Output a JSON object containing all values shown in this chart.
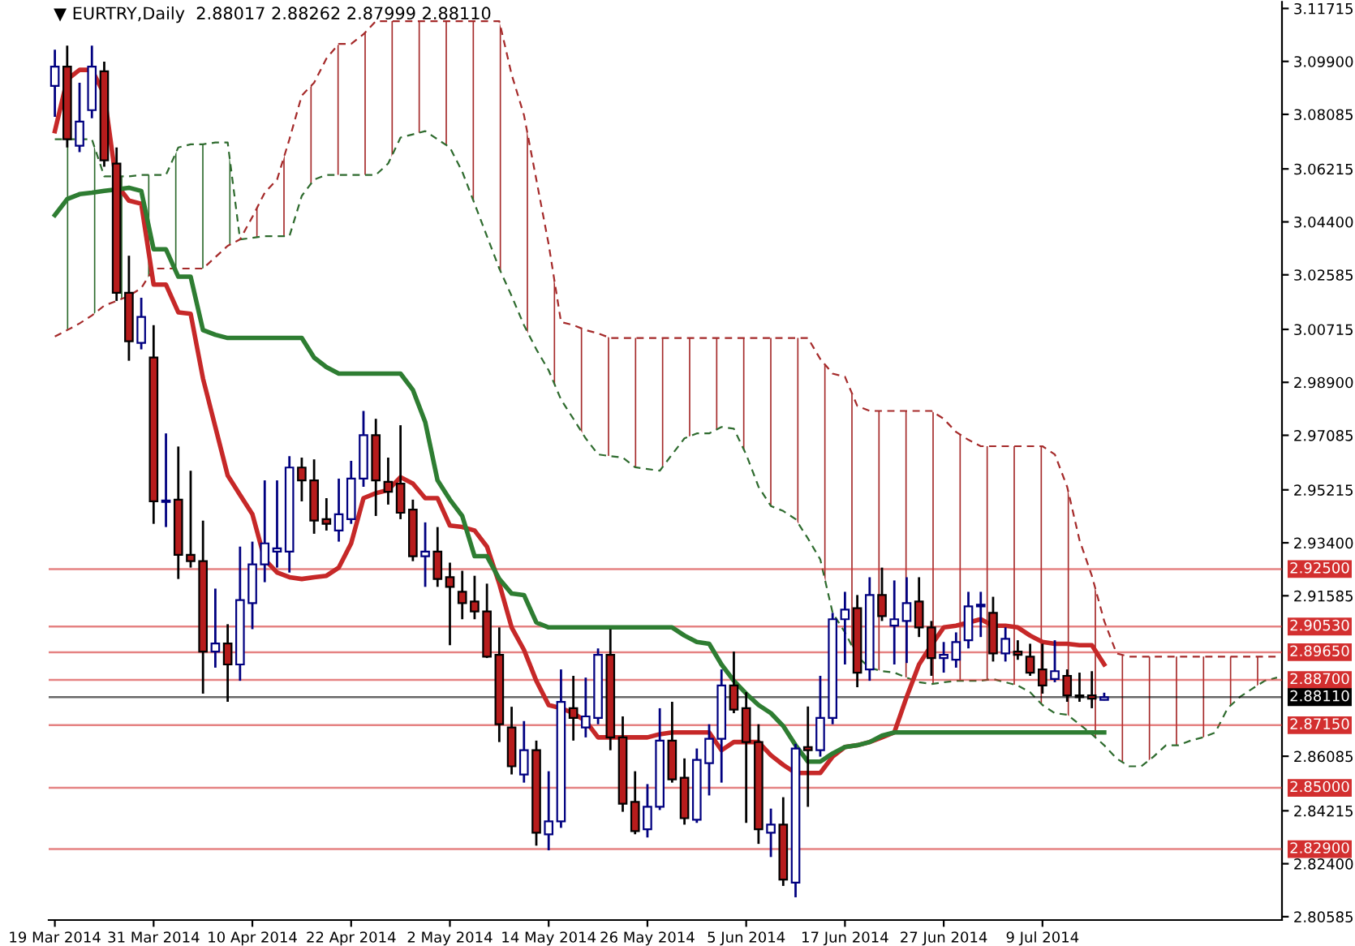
{
  "chart_data": {
    "type": "candlestick",
    "title": "▼ EURTRY,Daily  2.88017 2.88262 2.87999 2.88110",
    "categories": [
      "19 Mar 2014",
      null,
      null,
      null,
      null,
      null,
      null,
      null,
      "31 Mar 2014",
      null,
      null,
      null,
      null,
      null,
      null,
      null,
      "10 Apr 2014",
      null,
      null,
      null,
      null,
      null,
      null,
      null,
      "22 Apr 2014",
      null,
      null,
      null,
      null,
      null,
      null,
      null,
      "2 May 2014",
      null,
      null,
      null,
      null,
      null,
      null,
      null,
      "14 May 2014",
      null,
      null,
      null,
      null,
      null,
      null,
      null,
      "26 May 2014",
      null,
      null,
      null,
      null,
      null,
      null,
      null,
      "5 Jun 2014",
      null,
      null,
      null,
      null,
      null,
      null,
      null,
      "17 Jun 2014",
      null,
      null,
      null,
      null,
      null,
      null,
      null,
      "27 Jun 2014",
      null,
      null,
      null,
      null,
      null,
      null,
      null,
      "9 Jul 2014",
      null,
      null,
      null,
      null,
      null,
      null,
      null,
      null,
      null,
      null,
      null,
      null,
      null,
      null,
      null,
      null,
      null,
      null,
      null
    ],
    "ohlc": [
      [
        3.0906,
        3.103,
        3.08,
        3.0972
      ],
      [
        3.0972,
        3.1044,
        3.0695,
        3.0723
      ],
      [
        3.0701,
        3.0917,
        3.0679,
        3.0784
      ],
      [
        3.0823,
        3.1044,
        3.0795,
        3.0972
      ],
      [
        3.0956,
        3.0989,
        3.0629,
        3.0651
      ],
      [
        3.064,
        3.0695,
        3.0169,
        3.0197
      ],
      [
        3.0197,
        3.0324,
        2.9964,
        3.0031
      ],
      [
        3.0025,
        3.018,
        3.0003,
        3.0114
      ],
      [
        2.9975,
        3.0086,
        2.9405,
        2.9482
      ],
      [
        2.948,
        2.9715,
        2.9394,
        2.9485
      ],
      [
        2.9488,
        2.967,
        2.9216,
        2.9299
      ],
      [
        2.9299,
        2.9587,
        2.9255,
        2.9277
      ],
      [
        2.9277,
        2.9416,
        2.8823,
        2.8967
      ],
      [
        2.8967,
        2.9183,
        2.8912,
        2.8995
      ],
      [
        2.8995,
        2.9061,
        2.8795,
        2.8923
      ],
      [
        2.8923,
        2.9327,
        2.8867,
        2.9144
      ],
      [
        2.9133,
        2.9344,
        2.9044,
        2.9266
      ],
      [
        2.9266,
        2.9554,
        2.9205,
        2.9338
      ],
      [
        2.931,
        2.9554,
        2.9255,
        2.9321
      ],
      [
        2.931,
        2.9637,
        2.9238,
        2.9598
      ],
      [
        2.9598,
        2.9632,
        2.9482,
        2.9554
      ],
      [
        2.9554,
        2.9626,
        2.9371,
        2.9416
      ],
      [
        2.9421,
        2.9493,
        2.9382,
        2.9405
      ],
      [
        2.9382,
        2.956,
        2.9344,
        2.9438
      ],
      [
        2.9421,
        2.9621,
        2.9405,
        2.956
      ],
      [
        2.956,
        2.9792,
        2.9532,
        2.9709
      ],
      [
        2.9709,
        2.9765,
        2.9432,
        2.9554
      ],
      [
        2.9549,
        2.9632,
        2.9471,
        2.9515
      ],
      [
        2.9543,
        2.9743,
        2.9421,
        2.9443
      ],
      [
        2.9454,
        2.9488,
        2.9277,
        2.9294
      ],
      [
        2.9294,
        2.941,
        2.9189,
        2.931
      ],
      [
        2.931,
        2.9394,
        2.9189,
        2.9216
      ],
      [
        2.9222,
        2.9272,
        2.8989,
        2.9189
      ],
      [
        2.9172,
        2.9244,
        2.9078,
        2.9133
      ],
      [
        2.9139,
        2.9227,
        2.9078,
        2.9105
      ],
      [
        2.9105,
        2.92,
        2.8945,
        2.895
      ],
      [
        2.8956,
        2.905,
        2.8657,
        2.8718
      ],
      [
        2.8707,
        2.8778,
        2.8546,
        2.8574
      ],
      [
        2.8546,
        2.8729,
        2.8518,
        2.8629
      ],
      [
        2.8629,
        2.8662,
        2.8302,
        2.8346
      ],
      [
        2.8341,
        2.8557,
        2.8286,
        2.8385
      ],
      [
        2.8385,
        2.8906,
        2.8363,
        2.8795
      ],
      [
        2.8773,
        2.8884,
        2.8662,
        2.874
      ],
      [
        2.8707,
        2.8878,
        2.8673,
        2.8745
      ],
      [
        2.874,
        2.8978,
        2.8718,
        2.8956
      ],
      [
        2.8956,
        2.9044,
        2.8629,
        2.8673
      ],
      [
        2.8673,
        2.8745,
        2.8418,
        2.8446
      ],
      [
        2.8452,
        2.8557,
        2.8341,
        2.8352
      ],
      [
        2.8358,
        2.8513,
        2.833,
        2.8435
      ],
      [
        2.8435,
        2.8773,
        2.8424,
        2.8662
      ],
      [
        2.8662,
        2.8795,
        2.8518,
        2.8529
      ],
      [
        2.8535,
        2.8601,
        2.8374,
        2.8396
      ],
      [
        2.8391,
        2.8635,
        2.838,
        2.8596
      ],
      [
        2.8585,
        2.8718,
        2.8474,
        2.8668
      ],
      [
        2.8668,
        2.8906,
        2.8518,
        2.8851
      ],
      [
        2.8851,
        2.8967,
        2.8756,
        2.8768
      ],
      [
        2.8773,
        2.8828,
        2.838,
        2.8657
      ],
      [
        2.8657,
        2.8718,
        2.8308,
        2.8358
      ],
      [
        2.8346,
        2.8429,
        2.8263,
        2.8374
      ],
      [
        2.8374,
        2.8468,
        2.8164,
        2.8186
      ],
      [
        2.8175,
        2.8651,
        2.8125,
        2.8635
      ],
      [
        2.864,
        2.8779,
        2.8435,
        2.8629
      ],
      [
        2.8629,
        2.8884,
        2.8607,
        2.874
      ],
      [
        2.874,
        2.91,
        2.8718,
        2.9078
      ],
      [
        2.9078,
        2.9172,
        2.8923,
        2.9111
      ],
      [
        2.9116,
        2.9161,
        2.8845,
        2.8895
      ],
      [
        2.8906,
        2.9222,
        2.8867,
        2.9161
      ],
      [
        2.9161,
        2.9255,
        2.9072,
        2.9089
      ],
      [
        2.9056,
        2.9211,
        2.8923,
        2.9078
      ],
      [
        2.9072,
        2.9222,
        2.8928,
        2.9133
      ],
      [
        2.9139,
        2.9222,
        2.9017,
        2.905
      ],
      [
        2.905,
        2.9072,
        2.8884,
        2.8945
      ],
      [
        2.8945,
        2.9,
        2.8895,
        2.8956
      ],
      [
        2.8939,
        2.9033,
        2.8912,
        2.9
      ],
      [
        2.9006,
        2.9172,
        2.8978,
        2.9122
      ],
      [
        2.9122,
        2.9172,
        2.9017,
        2.9128
      ],
      [
        2.91,
        2.9155,
        2.8933,
        2.8961
      ],
      [
        2.8961,
        2.905,
        2.8933,
        2.9011
      ],
      [
        2.8967,
        2.9006,
        2.8939,
        2.8956
      ],
      [
        2.895,
        2.8994,
        2.8884,
        2.8895
      ],
      [
        2.8906,
        2.8994,
        2.8823,
        2.8851
      ],
      [
        2.8873,
        2.9006,
        2.8862,
        2.89
      ],
      [
        2.8884,
        2.8906,
        2.8795,
        2.8817
      ],
      [
        2.8817,
        2.8895,
        2.8795,
        2.8811
      ],
      [
        2.8817,
        2.89,
        2.8773,
        2.8806
      ],
      [
        2.88017,
        2.88262,
        2.87999,
        2.8811
      ],
      null,
      null,
      null,
      null,
      null,
      null,
      null,
      null,
      null,
      null,
      null,
      null,
      null,
      null
    ],
    "colors": [
      "#ffffff",
      "#b71c1c",
      "#ffffff",
      "#ffffff",
      "#b71c1c",
      "#b71c1c",
      "#b71c1c",
      "#ffffff",
      "#b71c1c",
      "#ffffff",
      "#b71c1c",
      "#b71c1c",
      "#b71c1c",
      "#ffffff",
      "#b71c1c",
      "#ffffff",
      "#ffffff",
      "#ffffff",
      "#ffffff",
      "#ffffff",
      "#b71c1c",
      "#b71c1c",
      "#b71c1c",
      "#ffffff",
      "#ffffff",
      "#ffffff",
      "#b71c1c",
      "#b71c1c",
      "#b71c1c",
      "#b71c1c",
      "#ffffff",
      "#b71c1c",
      "#b71c1c",
      "#b71c1c",
      "#b71c1c",
      "#b71c1c",
      "#b71c1c",
      "#b71c1c",
      "#ffffff",
      "#b71c1c",
      "#ffffff",
      "#ffffff",
      "#b71c1c",
      "#ffffff",
      "#ffffff",
      "#b71c1c",
      "#b71c1c",
      "#b71c1c",
      "#ffffff",
      "#ffffff",
      "#b71c1c",
      "#b71c1c",
      "#ffffff",
      "#ffffff",
      "#ffffff",
      "#b71c1c",
      "#b71c1c",
      "#b71c1c",
      "#ffffff",
      "#b71c1c",
      "#ffffff",
      "#b71c1c",
      "#ffffff",
      "#ffffff",
      "#ffffff",
      "#b71c1c",
      "#ffffff",
      "#b71c1c",
      "#ffffff",
      "#ffffff",
      "#b71c1c",
      "#b71c1c",
      "#ffffff",
      "#ffffff",
      "#ffffff",
      "#ffffff",
      "#b71c1c",
      "#ffffff",
      "#b71c1c",
      "#b71c1c",
      "#b71c1c",
      "#ffffff",
      "#b71c1c",
      "#b71c1c",
      "#b71c1c",
      "#ffffff",
      null,
      null,
      null,
      null,
      null,
      null,
      null,
      null,
      null,
      null,
      null,
      null,
      null,
      null
    ],
    "series": [
      {
        "type": "line",
        "color": "#c62828",
        "line_style": "solid",
        "values": [
          3.0751,
          3.0928,
          3.0961,
          3.0961,
          3.0878,
          3.0568,
          3.0513,
          3.0502,
          3.0225,
          3.0225,
          3.013,
          3.0125,
          2.9903,
          2.9737,
          2.9571,
          2.9504,
          2.9438,
          2.9283,
          2.9238,
          2.9222,
          2.9216,
          2.9222,
          2.9227,
          2.9255,
          2.9338,
          2.9493,
          2.951,
          2.9521,
          2.9565,
          2.9543,
          2.9493,
          2.9493,
          2.9399,
          2.9394,
          2.9382,
          2.9327,
          2.92,
          2.905,
          2.8973,
          2.8867,
          2.8784,
          2.8773,
          2.8756,
          2.8729,
          2.8673,
          2.8673,
          2.8673,
          2.8673,
          2.8673,
          2.8684,
          2.869,
          2.869,
          2.869,
          2.869,
          2.8629,
          2.8657,
          2.8657,
          2.8657,
          2.8612,
          2.8579,
          2.8551,
          2.8551,
          2.8551,
          2.8607,
          2.864,
          2.8646,
          2.8657,
          2.8673,
          2.869,
          2.8812,
          2.8923,
          2.8989,
          2.905,
          2.9056,
          2.9067,
          2.9078,
          2.9056,
          2.9056,
          2.905,
          2.9022,
          2.9,
          2.8994,
          2.8994,
          2.8989,
          2.8989,
          2.8923,
          null,
          null,
          null,
          null,
          null,
          null,
          null,
          null,
          null,
          null,
          null,
          null,
          null,
          null
        ]
      },
      {
        "type": "line",
        "color": "#2e7d32",
        "line_style": "solid",
        "values": [
          3.0463,
          3.0518,
          3.0535,
          3.054,
          3.0546,
          3.0551,
          3.0557,
          3.0546,
          3.0346,
          3.0346,
          3.0252,
          3.0252,
          3.0069,
          3.0053,
          3.0042,
          3.0042,
          3.0042,
          3.0042,
          3.0042,
          3.0042,
          3.0042,
          2.9975,
          2.9942,
          2.992,
          2.992,
          2.992,
          2.992,
          2.992,
          2.992,
          2.9864,
          2.9754,
          2.9554,
          2.9488,
          2.9432,
          2.9294,
          2.9294,
          2.9216,
          2.9166,
          2.9161,
          2.9067,
          2.905,
          2.905,
          2.905,
          2.905,
          2.905,
          2.905,
          2.905,
          2.905,
          2.905,
          2.905,
          2.905,
          2.9022,
          2.9,
          2.8994,
          2.8923,
          2.8867,
          2.8823,
          2.8784,
          2.8756,
          2.8712,
          2.8646,
          2.859,
          2.859,
          2.8618,
          2.864,
          2.8646,
          2.8657,
          2.8679,
          2.869,
          2.869,
          2.869,
          2.869,
          2.869,
          2.869,
          2.869,
          2.869,
          2.869,
          2.869,
          2.869,
          2.869,
          2.869,
          2.869,
          2.869,
          2.869,
          2.869,
          2.869,
          null,
          null,
          null,
          null,
          null,
          null,
          null,
          null,
          null,
          null,
          null,
          null,
          null,
          null
        ]
      },
      {
        "type": "line",
        "color": "#2e6b2e",
        "line_style": "dashed",
        "values": [
          3.0723,
          3.0723,
          3.0723,
          3.0723,
          3.0596,
          3.0596,
          3.0596,
          3.0601,
          3.0601,
          3.0601,
          3.0695,
          3.0706,
          3.0706,
          3.0712,
          3.0712,
          3.038,
          3.0385,
          3.0391,
          3.0391,
          3.0391,
          3.0529,
          3.0585,
          3.0601,
          3.0601,
          3.0601,
          3.0601,
          3.0601,
          3.064,
          3.0729,
          3.074,
          3.0751,
          3.0723,
          3.0695,
          3.0612,
          3.0502,
          3.0391,
          3.028,
          3.0186,
          3.0086,
          3.0003,
          2.9931,
          2.9831,
          2.9765,
          2.9698,
          2.9643,
          2.9637,
          2.9632,
          2.9599,
          2.9593,
          2.9587,
          2.9643,
          2.9698,
          2.9715,
          2.9715,
          2.9737,
          2.9731,
          2.9643,
          2.9532,
          2.9466,
          2.9449,
          2.9421,
          2.9355,
          2.9283,
          2.91,
          2.9033,
          2.895,
          2.8912,
          2.89,
          2.8895,
          2.8878,
          2.8862,
          2.8856,
          2.8862,
          2.8867,
          2.8867,
          2.8867,
          2.8873,
          2.8862,
          2.8851,
          2.8828,
          2.8784,
          2.8756,
          2.8751,
          2.8718,
          2.8684,
          2.8646,
          2.8601,
          2.8574,
          2.8574,
          2.8607,
          2.8646,
          2.8646,
          2.8662,
          2.8673,
          2.869,
          2.8773,
          2.8812,
          2.884,
          2.8867,
          2.8878
        ],
        "lower": [
          3.0047,
          3.0069,
          3.0092,
          3.0119,
          3.0153,
          3.0169,
          3.0186,
          3.0213,
          3.028,
          3.028,
          3.028,
          3.028,
          3.028,
          3.0319,
          3.0358,
          3.038,
          null,
          null,
          null,
          null,
          null,
          null,
          null,
          null,
          null,
          null,
          null,
          null,
          null,
          null,
          null,
          null,
          null,
          null,
          null,
          null,
          null,
          null,
          null,
          null,
          null,
          null,
          null,
          null,
          null,
          null,
          null,
          null,
          null,
          null,
          null,
          null,
          null,
          null,
          null,
          null,
          null,
          null,
          null,
          null,
          null,
          null,
          null,
          null,
          null,
          null,
          null,
          null,
          null,
          null,
          null,
          null,
          null,
          null,
          null,
          null,
          null,
          null,
          null,
          null,
          null,
          null,
          null,
          null,
          null,
          null,
          null,
          null,
          null,
          null,
          null,
          null,
          null,
          null,
          null,
          null,
          null,
          null,
          null,
          null
        ],
        "upper": [
          3.0723,
          3.0723,
          3.0723,
          3.0723,
          3.0596,
          3.0596,
          3.0596,
          3.0601,
          3.0601,
          3.0601,
          3.0695,
          3.0706,
          3.0706,
          3.0712,
          3.0712,
          3.038,
          null,
          null,
          null,
          null,
          null,
          null,
          null,
          null,
          null,
          null,
          null,
          null,
          null,
          null,
          null,
          null,
          null,
          null,
          null,
          null,
          null,
          null,
          null,
          null,
          null,
          null,
          null,
          null,
          null,
          null,
          null,
          null,
          null,
          null,
          null,
          null,
          null,
          null,
          null,
          null,
          null,
          null,
          null,
          null,
          null,
          null,
          null,
          null,
          null,
          null,
          null,
          null,
          null,
          null,
          null,
          null,
          null,
          null,
          null,
          null,
          null,
          null,
          null,
          null,
          null,
          null,
          null,
          null,
          null,
          null,
          null,
          null,
          null,
          null,
          null,
          null,
          null,
          null,
          null,
          null,
          null,
          null,
          null,
          null
        ]
      },
      {
        "type": "line",
        "color": "#a52a2a",
        "line_style": "dashed",
        "values": [
          3.0047,
          3.0069,
          3.0092,
          3.0119,
          3.0153,
          3.0169,
          3.0186,
          3.0213,
          3.028,
          3.028,
          3.028,
          3.028,
          3.028,
          3.0319,
          3.0358,
          3.038,
          3.0457,
          3.054,
          3.0585,
          3.0723,
          3.0873,
          3.0917,
          3.1,
          3.105,
          3.105,
          3.1083,
          3.1128,
          3.1128,
          3.1128,
          3.1128,
          3.1128,
          3.1128,
          3.1128,
          3.1128,
          3.1128,
          3.1128,
          3.1128,
          3.0945,
          3.0806,
          3.0585,
          3.0363,
          3.0097,
          3.0086,
          3.0069,
          3.0058,
          3.0042,
          3.0042,
          3.0042,
          3.0042,
          3.0042,
          3.0042,
          3.0042,
          3.0042,
          3.0042,
          3.0042,
          3.0042,
          3.0042,
          3.0042,
          3.0042,
          3.0042,
          3.0042,
          3.0042,
          2.997,
          2.992,
          2.9909,
          2.9809,
          2.9792,
          2.9792,
          2.9792,
          2.9792,
          2.9792,
          2.9792,
          2.9765,
          2.972,
          2.9693,
          2.9671,
          2.9671,
          2.9671,
          2.9671,
          2.9671,
          2.9671,
          2.9643,
          2.9532,
          2.9349,
          2.9227,
          2.9072,
          2.8961,
          2.895,
          2.895,
          2.895,
          2.895,
          2.895,
          2.895,
          2.895,
          2.895,
          2.895,
          2.895,
          2.895,
          2.895,
          2.895
        ],
        "lower": [
          null,
          null,
          null,
          null,
          null,
          null,
          null,
          null,
          null,
          null,
          null,
          null,
          null,
          null,
          null,
          3.038,
          3.0385,
          3.0391,
          3.0391,
          3.0391,
          3.0529,
          3.0585,
          3.0601,
          3.0601,
          3.0601,
          3.0601,
          3.0601,
          3.064,
          3.0729,
          3.074,
          3.0751,
          3.0723,
          3.0695,
          3.0612,
          3.0502,
          3.0391,
          3.028,
          3.0186,
          3.0086,
          3.0003,
          2.9931,
          2.9831,
          2.9765,
          2.9698,
          2.9643,
          2.9637,
          2.9632,
          2.9599,
          2.9593,
          2.9587,
          2.9643,
          2.9698,
          2.9715,
          2.9715,
          2.9737,
          2.9731,
          2.9643,
          2.9532,
          2.9466,
          2.9449,
          2.9421,
          2.9355,
          2.9283,
          2.91,
          2.9033,
          2.895,
          2.8912,
          2.89,
          2.8895,
          2.8878,
          2.8862,
          2.8856,
          2.8862,
          2.8867,
          2.8867,
          2.8867,
          2.8873,
          2.8862,
          2.8851,
          2.8828,
          2.8784,
          2.8756,
          2.8751,
          2.8718,
          2.8684,
          2.8646,
          2.8601,
          2.8574,
          2.8574,
          2.8607,
          2.8646,
          2.8646,
          2.8662,
          2.8673,
          2.869,
          2.8773,
          2.8812,
          2.884,
          2.8867,
          2.8878
        ],
        "upper": [
          null,
          null,
          null,
          null,
          null,
          null,
          null,
          null,
          null,
          null,
          null,
          null,
          null,
          null,
          null,
          3.038,
          3.0457,
          3.054,
          3.0585,
          3.0723,
          3.0873,
          3.0917,
          3.1,
          3.105,
          3.105,
          3.1083,
          3.1128,
          3.1128,
          3.1128,
          3.1128,
          3.1128,
          3.1128,
          3.1128,
          3.1128,
          3.1128,
          3.1128,
          3.1128,
          3.0945,
          3.0806,
          3.0585,
          3.0363,
          3.0097,
          3.0086,
          3.0069,
          3.0058,
          3.0042,
          3.0042,
          3.0042,
          3.0042,
          3.0042,
          3.0042,
          3.0042,
          3.0042,
          3.0042,
          3.0042,
          3.0042,
          3.0042,
          3.0042,
          3.0042,
          3.0042,
          3.0042,
          3.0042,
          2.997,
          2.992,
          2.9909,
          2.9809,
          2.9792,
          2.9792,
          2.9792,
          2.9792,
          2.9792,
          2.9792,
          2.9765,
          2.972,
          2.9693,
          2.9671,
          2.9671,
          2.9671,
          2.9671,
          2.9671,
          2.9671,
          2.9643,
          2.9532,
          2.9349,
          2.9227,
          2.9072,
          2.8961,
          2.895,
          2.895,
          2.895,
          2.895,
          2.895,
          2.895,
          2.895,
          2.895,
          2.895,
          2.895,
          2.895,
          2.895,
          2.895
        ]
      }
    ],
    "ylim": [
      2.8047,
      3.1194
    ],
    "yticks": [
      {
        "value": 3.11715,
        "label": "3.11715"
      },
      {
        "value": 3.099,
        "label": "3.09900"
      },
      {
        "value": 3.08085,
        "label": "3.08085"
      },
      {
        "value": 3.06215,
        "label": "3.06215"
      },
      {
        "value": 3.044,
        "label": "3.04400"
      },
      {
        "value": 3.02585,
        "label": "3.02585"
      },
      {
        "value": 3.00715,
        "label": "3.00715"
      },
      {
        "value": 2.989,
        "label": "2.98900"
      },
      {
        "value": 2.97085,
        "label": "2.97085"
      },
      {
        "value": 2.95215,
        "label": "2.95215"
      },
      {
        "value": 2.934,
        "label": "2.93400"
      },
      {
        "value": 2.91585,
        "label": "2.91585"
      },
      {
        "value": 2.86085,
        "label": "2.86085"
      },
      {
        "value": 2.84215,
        "label": "2.84215"
      },
      {
        "value": 2.824,
        "label": "2.82400"
      },
      {
        "value": 2.80585,
        "label": "2.80585"
      }
    ],
    "ref_lines": [
      {
        "axis": "y",
        "value": 2.925,
        "label": "2.92500",
        "color": "#d32f2f"
      },
      {
        "axis": "y",
        "value": 2.9053,
        "label": "2.90530",
        "color": "#d32f2f"
      },
      {
        "axis": "y",
        "value": 2.8965,
        "label": "2.89650",
        "color": "#d32f2f"
      },
      {
        "axis": "y",
        "value": 2.887,
        "label": "2.88700",
        "color": "#d32f2f"
      },
      {
        "axis": "y",
        "value": 2.8811,
        "label": "2.88110",
        "color": "#000000"
      },
      {
        "axis": "y",
        "value": 2.8715,
        "label": "2.87150",
        "color": "#d32f2f"
      },
      {
        "axis": "y",
        "value": 2.85,
        "label": "2.85000",
        "color": "#d32f2f"
      },
      {
        "axis": "y",
        "value": 2.829,
        "label": "2.82900",
        "color": "#d32f2f"
      }
    ],
    "grid": false
  }
}
